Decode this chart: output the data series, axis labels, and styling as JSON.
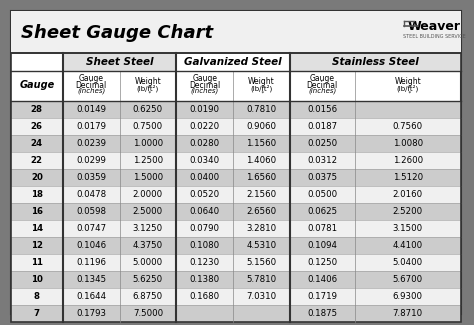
{
  "title": "Sheet Gauge Chart",
  "outer_bg": "#7a7a7a",
  "inner_bg": "#ffffff",
  "title_bg": "#ffffff",
  "header1_bg": "#ffffff",
  "col_header_bg": "#ffffff",
  "row_dark_bg": "#cccccc",
  "row_light_bg": "#f0f0f0",
  "border_dark": "#333333",
  "border_light": "#888888",
  "gauges": [
    28,
    26,
    24,
    22,
    20,
    18,
    16,
    14,
    12,
    11,
    10,
    8,
    7
  ],
  "sheet_steel_decimal": [
    "0.0149",
    "0.0179",
    "0.0239",
    "0.0299",
    "0.0359",
    "0.0478",
    "0.0598",
    "0.0747",
    "0.1046",
    "0.1196",
    "0.1345",
    "0.1644",
    "0.1793"
  ],
  "sheet_steel_weight": [
    "0.6250",
    "0.7500",
    "1.0000",
    "1.2500",
    "1.5000",
    "2.0000",
    "2.5000",
    "3.1250",
    "4.3750",
    "5.0000",
    "5.6250",
    "6.8750",
    "7.5000"
  ],
  "galv_decimal": [
    "0.0190",
    "0.0220",
    "0.0280",
    "0.0340",
    "0.0400",
    "0.0520",
    "0.0640",
    "0.0790",
    "0.1080",
    "0.1230",
    "0.1380",
    "0.1680",
    ""
  ],
  "galv_weight": [
    "0.7810",
    "0.9060",
    "1.1560",
    "1.4060",
    "1.6560",
    "2.1560",
    "2.6560",
    "3.2810",
    "4.5310",
    "5.1560",
    "5.7810",
    "7.0310",
    ""
  ],
  "ss_decimal": [
    "0.0156",
    "0.0187",
    "0.0250",
    "0.0312",
    "0.0375",
    "0.0500",
    "0.0625",
    "0.0781",
    "0.1094",
    "0.1250",
    "0.1406",
    "0.1719",
    "0.1875"
  ],
  "ss_weight": [
    "",
    "0.7560",
    "1.0080",
    "1.2600",
    "1.5120",
    "2.0160",
    "2.5200",
    "3.1500",
    "4.4100",
    "5.0400",
    "5.6700",
    "6.9300",
    "7.8710"
  ]
}
